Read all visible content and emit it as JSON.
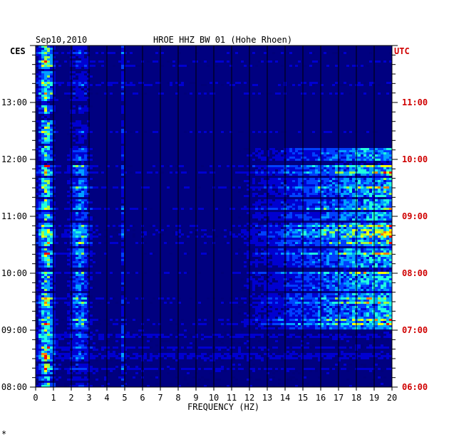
{
  "chart_data": {
    "type": "heatmap",
    "header_left": "Sep10,2010",
    "title": "HROE HHZ BW 01 (Hohe Rhoen)",
    "left_zone": "CES",
    "right_zone": "UTC",
    "xlabel": "FREQUENCY (HZ)",
    "xlim": [
      0,
      20
    ],
    "x_ticks": [
      "0",
      "1",
      "2",
      "3",
      "4",
      "5",
      "6",
      "7",
      "8",
      "9",
      "10",
      "11",
      "12",
      "13",
      "14",
      "15",
      "16",
      "17",
      "18",
      "19",
      "20"
    ],
    "time_range_local_hours": [
      8.0,
      14.0
    ],
    "left_time_labels": [
      "13:00",
      "12:00",
      "11:00",
      "10:00",
      "09:00",
      "08:00"
    ],
    "left_time_values": [
      13,
      12,
      11,
      10,
      9,
      8
    ],
    "right_time_labels": [
      "11:00",
      "10:00",
      "09:00",
      "08:00",
      "07:00",
      "06:00"
    ],
    "colormap": [
      "#00007a",
      "#0000d0",
      "#0040ff",
      "#00a0ff",
      "#20ffe0",
      "#a0ff40",
      "#ffff00",
      "#ff8000",
      "#ff0000"
    ],
    "colors": {
      "plot_background": "#000080",
      "utc_labels": "#d00000",
      "axis_text": "#000000"
    },
    "footnote": "*"
  }
}
